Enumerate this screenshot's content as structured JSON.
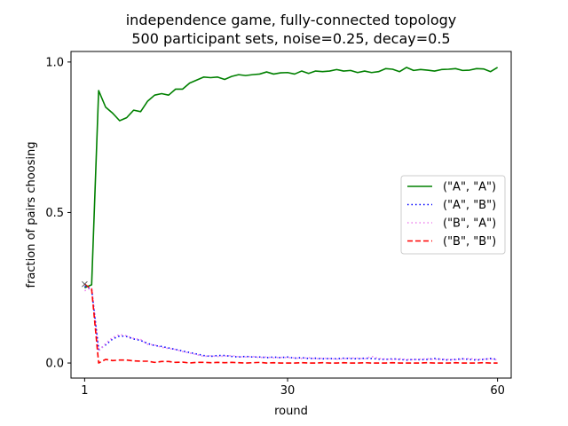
{
  "chart_data": {
    "type": "line",
    "title_line1": "independence game, fully-connected topology",
    "title_line2": "500 participant sets, noise=0.25, decay=0.5",
    "xlabel": "round",
    "ylabel": "fraction of pairs choosing",
    "xlim": [
      -0.95,
      61.95
    ],
    "ylim": [
      -0.05,
      1.035
    ],
    "x_ticks": [
      1,
      30,
      60
    ],
    "x_tick_labels": [
      "1",
      "30",
      "60"
    ],
    "y_ticks": [
      0.0,
      0.5,
      1.0
    ],
    "y_tick_labels": [
      "0.0",
      "0.5",
      "1.0"
    ],
    "legend_position": "center-right",
    "x": [
      1,
      2,
      3,
      4,
      5,
      6,
      7,
      8,
      9,
      10,
      11,
      12,
      13,
      14,
      15,
      16,
      17,
      18,
      19,
      20,
      21,
      22,
      23,
      24,
      25,
      26,
      27,
      28,
      29,
      30,
      31,
      32,
      33,
      34,
      35,
      36,
      37,
      38,
      39,
      40,
      41,
      42,
      43,
      44,
      45,
      46,
      47,
      48,
      49,
      50,
      51,
      52,
      53,
      54,
      55,
      56,
      57,
      58,
      59,
      60
    ],
    "series": [
      {
        "name": "(\"A\", \"A\")",
        "color": "#008000",
        "style": "solid",
        "values": [
          0.25,
          0.26,
          0.905,
          0.85,
          0.83,
          0.805,
          0.815,
          0.84,
          0.835,
          0.87,
          0.89,
          0.895,
          0.89,
          0.91,
          0.91,
          0.93,
          0.94,
          0.95,
          0.948,
          0.95,
          0.942,
          0.952,
          0.958,
          0.955,
          0.958,
          0.96,
          0.967,
          0.96,
          0.964,
          0.965,
          0.96,
          0.97,
          0.962,
          0.97,
          0.968,
          0.97,
          0.975,
          0.97,
          0.972,
          0.965,
          0.97,
          0.965,
          0.968,
          0.978,
          0.976,
          0.968,
          0.982,
          0.972,
          0.975,
          0.973,
          0.97,
          0.975,
          0.976,
          0.978,
          0.972,
          0.973,
          0.978,
          0.977,
          0.968,
          0.982
        ]
      },
      {
        "name": "(\"A\", \"B\")",
        "color": "#0000ff",
        "style": "dotted",
        "values": [
          0.255,
          0.245,
          0.045,
          0.06,
          0.08,
          0.09,
          0.088,
          0.08,
          0.075,
          0.065,
          0.058,
          0.055,
          0.05,
          0.045,
          0.04,
          0.035,
          0.03,
          0.025,
          0.022,
          0.025,
          0.025,
          0.022,
          0.02,
          0.022,
          0.02,
          0.02,
          0.018,
          0.02,
          0.018,
          0.02,
          0.016,
          0.018,
          0.015,
          0.016,
          0.014,
          0.015,
          0.014,
          0.016,
          0.015,
          0.014,
          0.016,
          0.015,
          0.013,
          0.012,
          0.014,
          0.012,
          0.01,
          0.012,
          0.011,
          0.012,
          0.015,
          0.012,
          0.01,
          0.012,
          0.014,
          0.012,
          0.01,
          0.012,
          0.015,
          0.012
        ]
      },
      {
        "name": "(\"B\", \"A\")",
        "color": "#ee82ee",
        "style": "dotted",
        "values": [
          0.24,
          0.25,
          0.04,
          0.065,
          0.085,
          0.095,
          0.09,
          0.082,
          0.078,
          0.062,
          0.06,
          0.052,
          0.048,
          0.045,
          0.038,
          0.033,
          0.028,
          0.022,
          0.024,
          0.022,
          0.023,
          0.025,
          0.021,
          0.02,
          0.022,
          0.018,
          0.02,
          0.017,
          0.019,
          0.018,
          0.017,
          0.015,
          0.018,
          0.014,
          0.016,
          0.015,
          0.013,
          0.014,
          0.017,
          0.016,
          0.014,
          0.022,
          0.015,
          0.013,
          0.012,
          0.014,
          0.012,
          0.011,
          0.013,
          0.014,
          0.012,
          0.013,
          0.012,
          0.011,
          0.013,
          0.015,
          0.012,
          0.013,
          0.014,
          0.01
        ]
      },
      {
        "name": "(\"B\", \"B\")",
        "color": "#ff0000",
        "style": "dashed",
        "values": [
          0.262,
          0.245,
          0.0,
          0.012,
          0.008,
          0.01,
          0.01,
          0.007,
          0.006,
          0.006,
          0.002,
          0.005,
          0.005,
          0.002,
          0.003,
          0.0,
          0.002,
          0.002,
          0.001,
          0.002,
          0.001,
          0.002,
          0.001,
          0.0,
          0.001,
          0.002,
          0.0,
          0.001,
          0.0,
          0.0,
          0.0,
          0.001,
          0.0,
          0.0,
          0.001,
          0.0,
          0.0,
          0.001,
          0.0,
          0.0,
          0.001,
          0.0,
          0.0,
          0.0,
          0.001,
          0.0,
          0.0,
          0.0,
          0.0,
          0.001,
          0.0,
          0.0,
          0.0,
          0.001,
          0.0,
          0.0,
          0.0,
          0.001,
          0.0,
          0.0
        ]
      }
    ]
  }
}
